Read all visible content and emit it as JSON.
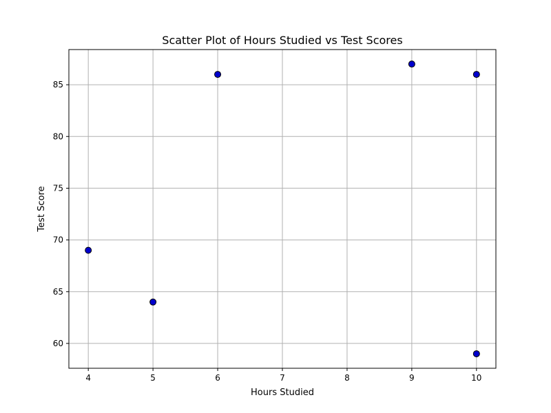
{
  "chart_data": {
    "type": "scatter",
    "title": "Scatter Plot of Hours Studied vs Test Scores",
    "xlabel": "Hours Studied",
    "ylabel": "Test Score",
    "xlim": [
      3.7,
      10.3
    ],
    "ylim": [
      57.6,
      88.4
    ],
    "xticks": [
      4,
      5,
      6,
      7,
      8,
      9,
      10
    ],
    "yticks": [
      60,
      65,
      70,
      75,
      80,
      85
    ],
    "grid": true,
    "legend": "none",
    "marker_fill": "#0000cd",
    "marker_edge": "#000000",
    "grid_color": "#b0b0b0",
    "points": [
      {
        "x": 4,
        "y": 69
      },
      {
        "x": 5,
        "y": 64
      },
      {
        "x": 6,
        "y": 86
      },
      {
        "x": 9,
        "y": 87
      },
      {
        "x": 10,
        "y": 86
      },
      {
        "x": 10,
        "y": 59
      }
    ]
  }
}
